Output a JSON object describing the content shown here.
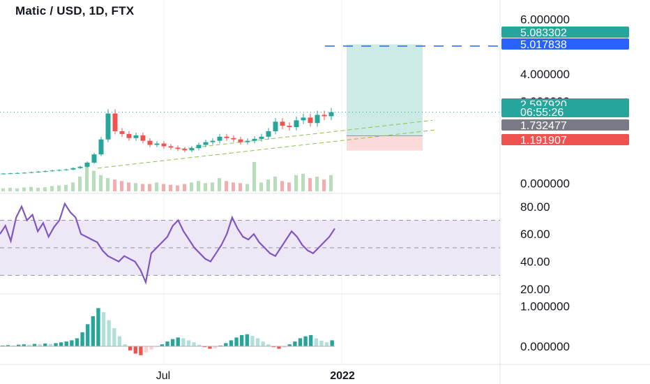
{
  "header": {
    "title": "Matic / USD, 1D, FTX"
  },
  "colors": {
    "up": "#26a69a",
    "down": "#ef5350",
    "rsi": "#7e57c2",
    "rsi_band": "#ede7f6",
    "target_zone": "#cdebe6",
    "stop_zone": "#fbdada",
    "target_line": "#2962ff",
    "entry_tag": "#787b86",
    "grid": "#f0f3fa"
  },
  "price_axis": {
    "ticks": [
      "6.000000",
      "4.000000",
      "3.000000",
      "0.000000"
    ]
  },
  "price_tags": [
    {
      "label": "5.083302",
      "color": "#26a69a",
      "kind": "target"
    },
    {
      "label": "5.017838",
      "color": "#2962ff",
      "kind": "horizontal-line"
    },
    {
      "label": "2.597920",
      "color": "#26a69a",
      "kind": "last-price"
    },
    {
      "label": "06:55:26",
      "color": "#26a69a",
      "kind": "countdown"
    },
    {
      "label": "1.732477",
      "color": "#787b86",
      "kind": "entry"
    },
    {
      "label": "1.191907",
      "color": "#ef5350",
      "kind": "stop"
    }
  ],
  "rsi_axis": {
    "ticks": [
      "80.00",
      "60.00",
      "40.00",
      "20.00"
    ]
  },
  "macd_axis": {
    "ticks": [
      "1.000000",
      "0.000000"
    ]
  },
  "time_axis": {
    "labels": [
      "Jul",
      "2022"
    ]
  },
  "chart_data": [
    {
      "type": "candlestick",
      "title": "Matic / USD, 1D, FTX",
      "xlabel": "",
      "ylabel": "",
      "x_range": [
        "2021-03",
        "2022-01"
      ],
      "ylim": [
        -0.3,
        6.4
      ],
      "series": [
        {
          "name": "",
          "values": [
            0.35,
            0.36,
            0.37,
            0.38,
            0.4,
            0.42,
            0.44,
            0.46,
            0.48,
            0.5,
            0.55,
            0.6,
            0.75,
            1.05,
            1.6,
            2.55,
            1.9,
            1.8,
            1.65,
            1.75,
            1.55,
            1.4,
            1.45,
            1.35,
            1.3,
            1.25,
            1.2,
            1.28,
            1.4,
            1.5,
            1.55,
            1.7,
            1.65,
            1.6,
            1.5,
            1.55,
            1.62,
            1.7,
            1.9,
            2.25,
            2.1,
            2.05,
            2.3,
            2.4,
            2.2,
            2.5,
            2.45,
            2.6
          ]
        }
      ],
      "volume": [
        0.1,
        0.12,
        0.1,
        0.13,
        0.15,
        0.12,
        0.14,
        0.18,
        0.2,
        0.22,
        0.3,
        0.5,
        0.9,
        0.7,
        0.55,
        0.45,
        0.4,
        0.35,
        0.3,
        0.28,
        0.25,
        0.25,
        0.3,
        0.25,
        0.22,
        0.2,
        0.25,
        0.3,
        0.35,
        0.28,
        0.3,
        0.45,
        0.35,
        0.3,
        0.28,
        0.25,
        1.0,
        0.3,
        0.4,
        0.5,
        0.35,
        0.3,
        0.55,
        0.6,
        0.45,
        0.5,
        0.4,
        0.55
      ],
      "annotations": {
        "long_position": {
          "entry": 1.732477,
          "target": 5.083302,
          "stop": 1.191907
        },
        "horizontal_line": 5.017838
      }
    },
    {
      "type": "line",
      "title": "",
      "xlabel": "",
      "ylabel": "",
      "ylim": [
        18,
        88
      ],
      "bands": [
        30,
        50,
        70
      ],
      "series": [
        {
          "name": "",
          "values": [
            60,
            66,
            55,
            72,
            80,
            70,
            74,
            62,
            68,
            58,
            65,
            70,
            82,
            76,
            72,
            60,
            58,
            56,
            54,
            48,
            44,
            42,
            40,
            44,
            42,
            40,
            34,
            25,
            46,
            50,
            54,
            58,
            66,
            70,
            62,
            56,
            50,
            46,
            42,
            40,
            46,
            52,
            60,
            72,
            64,
            58,
            56,
            60,
            54,
            50,
            46,
            44,
            50,
            56,
            62,
            58,
            52,
            48,
            46,
            50,
            54,
            58,
            64
          ]
        }
      ]
    },
    {
      "type": "bar",
      "title": "",
      "xlabel": "",
      "ylabel": "",
      "ylim": [
        -0.45,
        1.25
      ],
      "series": [
        {
          "name": "",
          "values": [
            0.02,
            0.03,
            0.02,
            0.04,
            0.05,
            0.04,
            0.06,
            0.05,
            0.07,
            0.06,
            0.08,
            0.1,
            0.12,
            0.15,
            0.2,
            0.35,
            0.55,
            0.75,
            0.95,
            0.85,
            0.65,
            0.45,
            0.25,
            0.05,
            -0.1,
            -0.18,
            -0.22,
            -0.15,
            -0.08,
            -0.02,
            0.05,
            0.12,
            0.18,
            0.22,
            0.2,
            0.15,
            0.1,
            0.04,
            -0.02,
            -0.06,
            -0.05,
            0.02,
            0.08,
            0.15,
            0.22,
            0.28,
            0.3,
            0.26,
            0.2,
            0.12,
            0.05,
            -0.02,
            -0.06,
            -0.03,
            0.05,
            0.12,
            0.2,
            0.25,
            0.28,
            0.2,
            0.14,
            0.1,
            0.15
          ]
        }
      ]
    }
  ]
}
